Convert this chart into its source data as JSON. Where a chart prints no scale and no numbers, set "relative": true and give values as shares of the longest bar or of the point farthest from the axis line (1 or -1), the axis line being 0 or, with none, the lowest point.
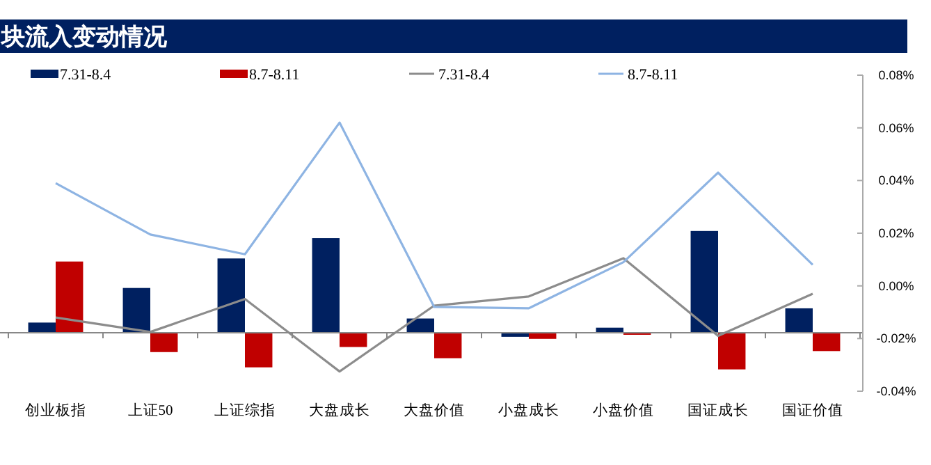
{
  "chart_data": {
    "type": "bar",
    "title": "块流入变动情况",
    "relative": true,
    "legend": "top",
    "grid": false,
    "categories": [
      "创业板指",
      "上证50",
      "上证综指",
      "大盘成长",
      "大盘价值",
      "小盘成长",
      "小盘价值",
      "国证成长",
      "国证价值"
    ],
    "series": [
      {
        "name": "7.31-8.4",
        "color": "#002060",
        "values": [
          0.1,
          0.44,
          0.73,
          0.93,
          0.14,
          -0.04,
          0.05,
          1,
          0.24
        ]
      },
      {
        "name": "8.7-8.11",
        "color": "#c00000",
        "values": [
          0.7,
          -0.19,
          -0.34,
          -0.14,
          -0.25,
          -0.06,
          -0.02,
          -0.36,
          -0.18
        ]
      },
      {
        "name": "7.31-8.4",
        "type": "line",
        "axis": "y2",
        "color": "#8c8c8c",
        "values": [
          -0.012,
          -0.0175,
          -0.005,
          -0.0325,
          -0.0075,
          -0.004,
          0.0105,
          -0.019,
          -0.003
        ]
      },
      {
        "name": "8.7-8.11",
        "type": "line",
        "axis": "y2",
        "color": "#8eb4e3",
        "values": [
          0.039,
          0.0195,
          0.012,
          0.062,
          -0.008,
          -0.0085,
          0.009,
          0.043,
          0.008
        ]
      }
    ],
    "y2lim": [
      -0.04,
      0.08
    ],
    "y2ticks": [
      {
        "value": -0.04,
        "label": "-0.04%"
      },
      {
        "value": -0.02,
        "label": "-0.02%"
      },
      {
        "value": 0,
        "label": "0.00%"
      },
      {
        "value": 0.02,
        "label": "0.02%"
      },
      {
        "value": 0.04,
        "label": "0.04%"
      },
      {
        "value": 0.06,
        "label": "0.06%"
      },
      {
        "value": 0.08,
        "label": "0.08%"
      }
    ]
  }
}
